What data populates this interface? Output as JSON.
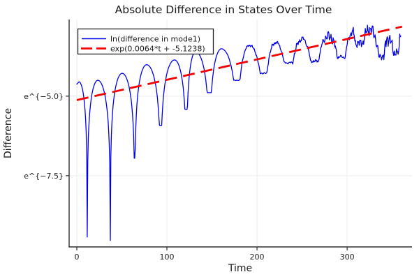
{
  "chart_data": {
    "type": "line",
    "title": "Absolute Difference in States Over Time",
    "xlabel": "Time",
    "ylabel": "Difference",
    "grid": true,
    "legend_position": "top-left",
    "xlim": [
      -8.5,
      372
    ],
    "ylim_ln": [
      -9.74,
      -2.59
    ],
    "x_ticks": [
      {
        "value": 0,
        "label": "0"
      },
      {
        "value": 100,
        "label": "100"
      },
      {
        "value": 200,
        "label": "200"
      },
      {
        "value": 300,
        "label": "300"
      }
    ],
    "y_ticks": [
      {
        "value": -5.0,
        "label": "e^{−5.0}"
      },
      {
        "value": -7.5,
        "label": "e^{−7.5}"
      }
    ],
    "colors": {
      "series_blue": "#0000ee",
      "fit_red": "#f40000",
      "grid": "#ececec",
      "spine": "#2e2e2e",
      "text": "#1a1a1a",
      "legend_border": "#222222",
      "background": "#ffffff"
    },
    "series": [
      {
        "name": "ln(difference in mode1)",
        "color": "#0000ee",
        "style": "solid",
        "description": "natural log of |difference|; humps of period ~28 t with sharp log cusps; envelope grows linearly in ln-space; noisy after t~155",
        "anchors_t_lnvalue_kind": [
          [
            0,
            -4.62,
            "s"
          ],
          [
            2.5,
            -4.55,
            "p"
          ],
          [
            11.6,
            -9.43,
            "c"
          ],
          [
            23.3,
            -4.5,
            "p"
          ],
          [
            37.2,
            -9.54,
            "c"
          ],
          [
            50.4,
            -4.28,
            "p"
          ],
          [
            64.3,
            -6.95,
            "c"
          ],
          [
            77.5,
            -4.01,
            "p"
          ],
          [
            93,
            -5.92,
            "c"
          ],
          [
            108.5,
            -3.86,
            "p"
          ],
          [
            121.7,
            -5.42,
            "c"
          ],
          [
            131.8,
            -3.6,
            "p"
          ],
          [
            147.3,
            -4.89,
            "c"
          ],
          [
            160.5,
            -3.51,
            "p"
          ],
          [
            178.3,
            -4.5,
            "c"
          ],
          [
            191.5,
            -3.4,
            "p"
          ],
          [
            207.8,
            -4.28,
            "c"
          ],
          [
            220.9,
            -3.31,
            "p"
          ],
          [
            234.9,
            -3.95,
            "c"
          ],
          [
            250.4,
            -3.2,
            "p"
          ],
          [
            263.6,
            -3.9,
            "c"
          ],
          [
            279.1,
            -3.11,
            "p"
          ],
          [
            294.6,
            -3.77,
            "c"
          ],
          [
            306.2,
            -2.98,
            "p"
          ],
          [
            311.6,
            -3.33,
            "c"
          ],
          [
            325,
            -2.89,
            "p"
          ],
          [
            338.8,
            -3.75,
            "c"
          ],
          [
            345,
            -3.18,
            "p"
          ],
          [
            356.6,
            -3.64,
            "c"
          ],
          [
            359.5,
            -2.94,
            "p"
          ]
        ],
        "noise_start_t": 155,
        "noise_max_amplitude_ln": 0.17
      },
      {
        "name": "exp(0.0064*t + -5.1238)",
        "color": "#f40000",
        "style": "dashed",
        "fit": {
          "slope": 0.0064,
          "intercept": -5.1238,
          "t_range": [
            0,
            361
          ]
        }
      }
    ]
  }
}
